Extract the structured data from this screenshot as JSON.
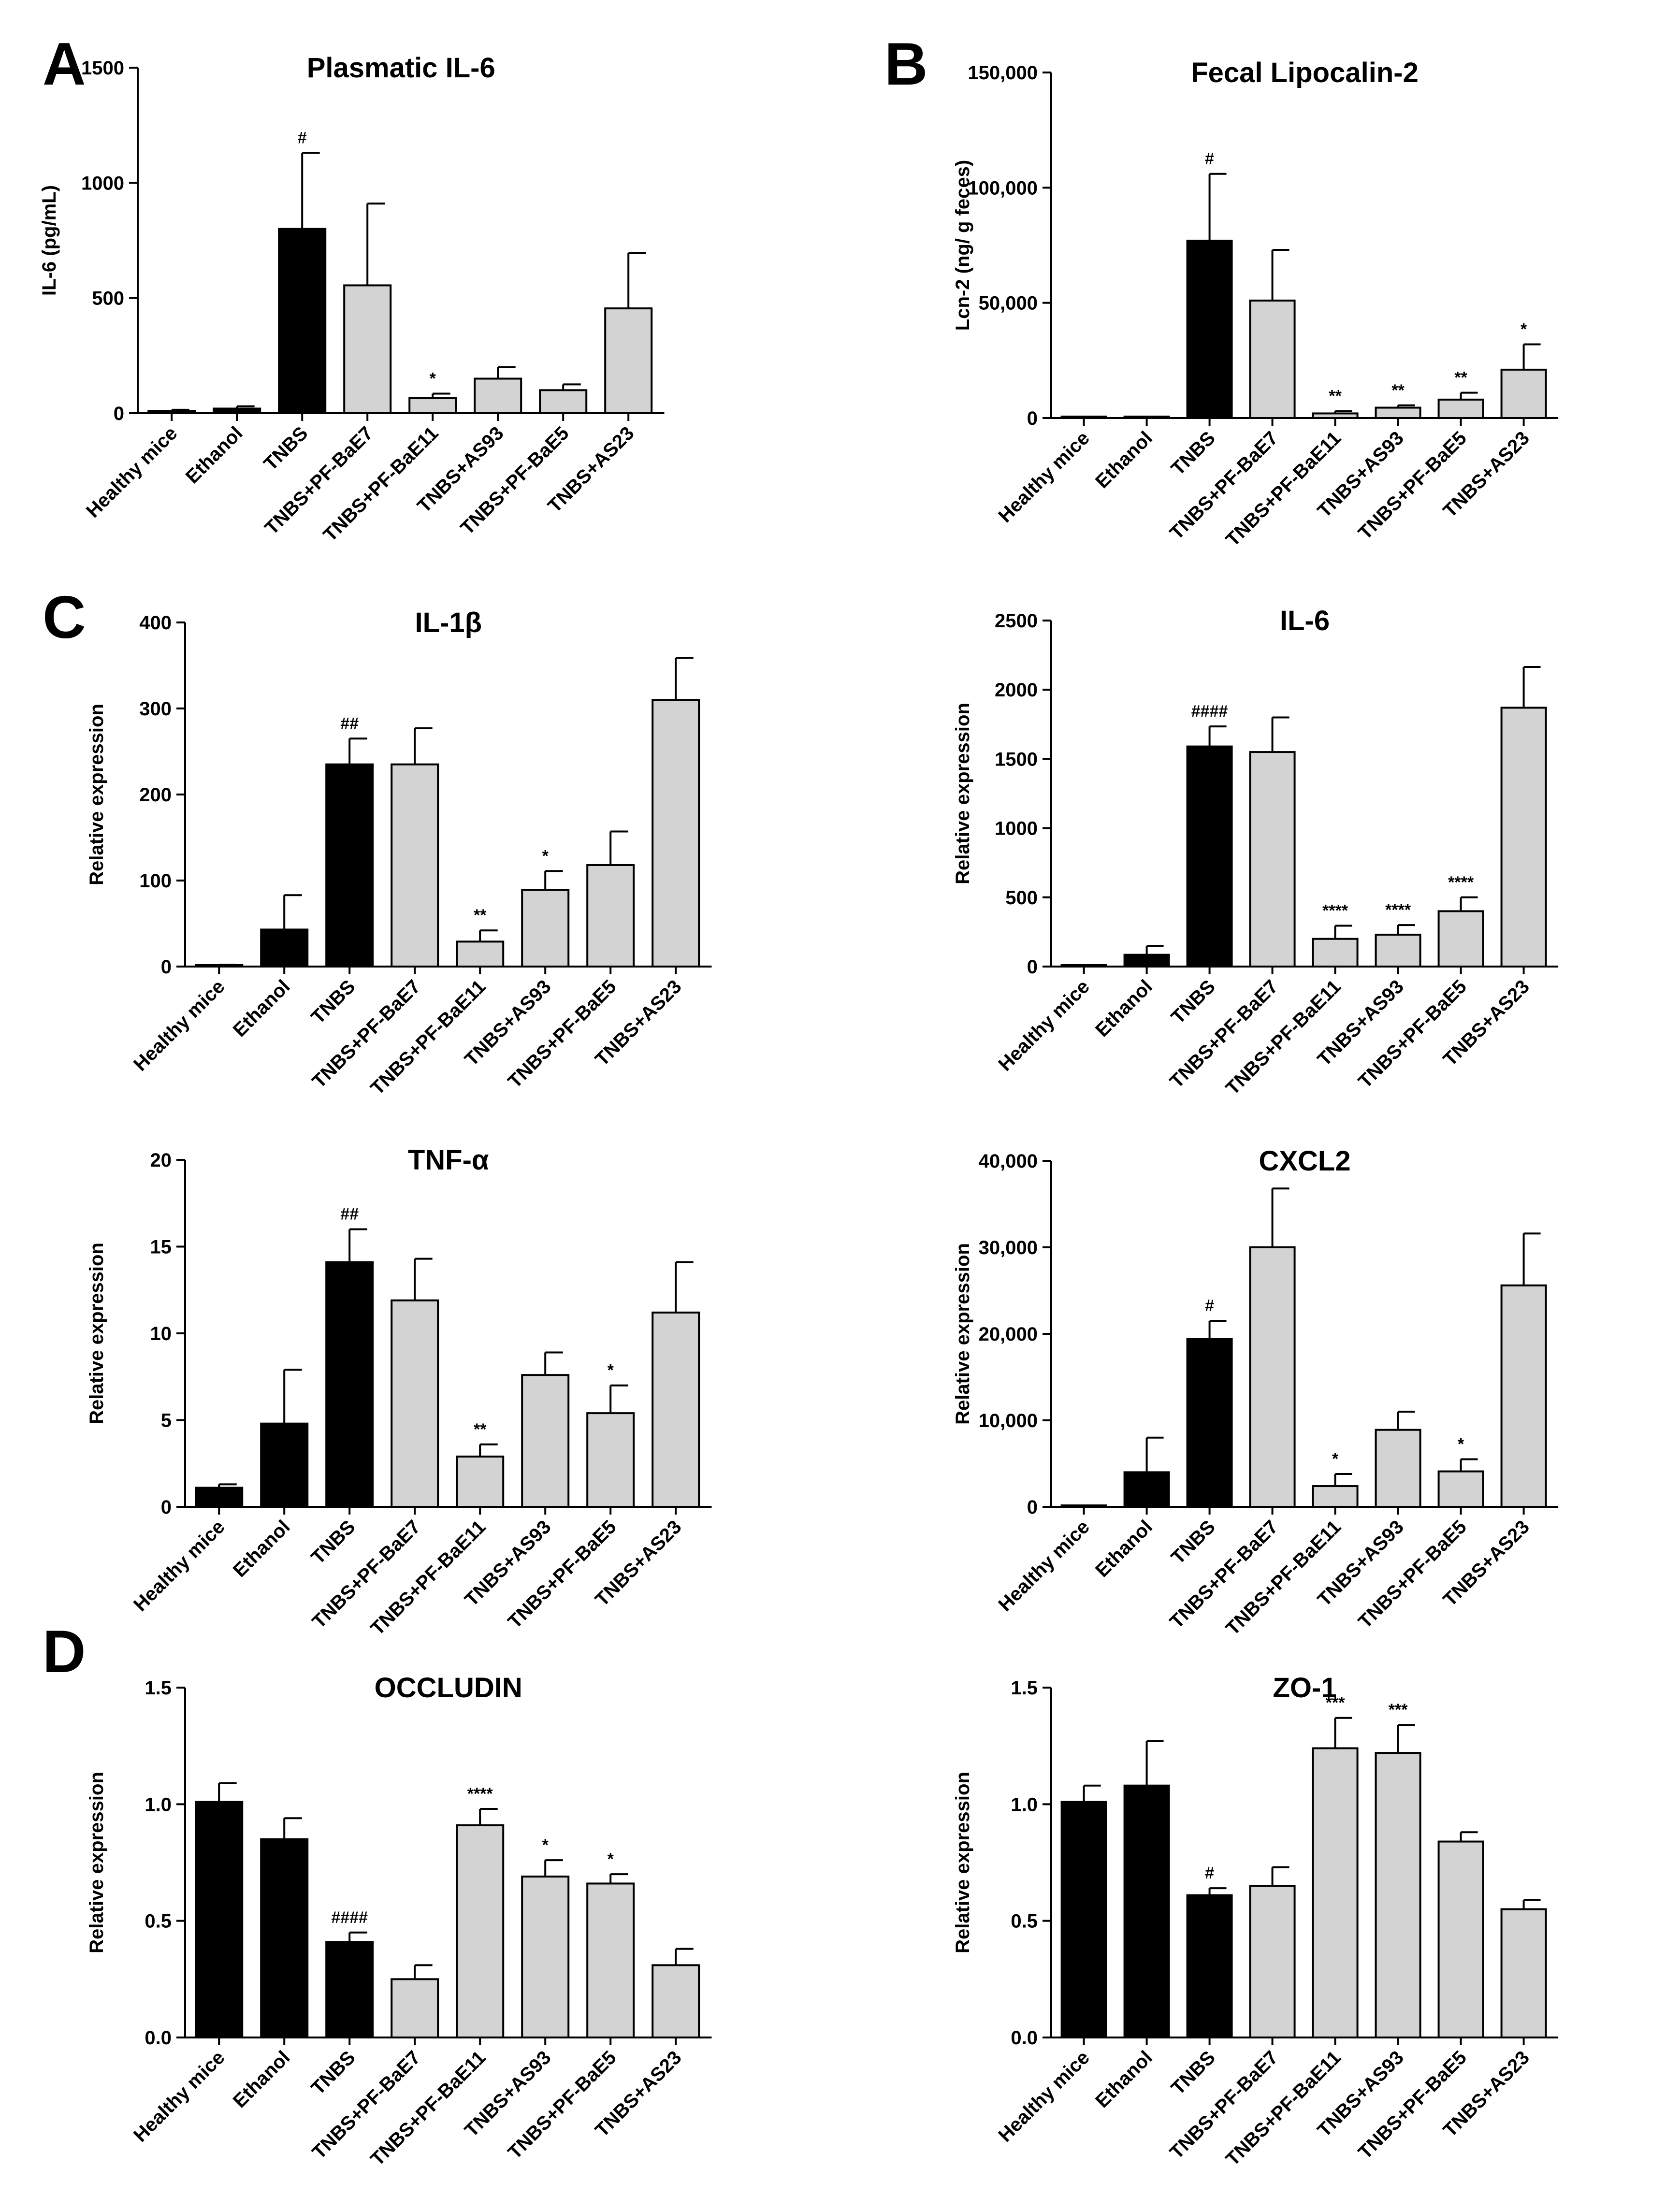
{
  "figure": {
    "panel_letters": [
      "A",
      "B",
      "C",
      "D"
    ]
  },
  "style": {
    "treated_color": "#d3d3d3",
    "control_color": "#000000"
  },
  "chart_data": [
    {
      "id": "il6-plasma",
      "type": "bar",
      "title": "Plasmatic IL-6",
      "ylabel": "IL-6 (pg/mL)",
      "ylim": [
        0,
        1500
      ],
      "yticks": [
        0,
        500,
        1000,
        1500
      ],
      "ytick_labels": [
        "0",
        "500",
        "1000",
        "1500"
      ],
      "categories": [
        "Healthy mice",
        "Ethanol",
        "TNBS",
        "TNBS+PF-BaE7",
        "TNBS+PF-BaE11",
        "TNBS+AS93",
        "TNBS+PF-BaE5",
        "TNBS+AS23"
      ],
      "values": [
        10,
        20,
        800,
        555,
        65,
        150,
        100,
        455
      ],
      "errors": [
        5,
        10,
        330,
        355,
        20,
        50,
        25,
        240
      ],
      "colors": [
        "black",
        "black",
        "black",
        "grey",
        "grey",
        "grey",
        "grey",
        "grey"
      ],
      "significance": [
        "",
        "",
        "#",
        "",
        "*",
        "",
        "",
        ""
      ]
    },
    {
      "id": "lcn2-fecal",
      "type": "bar",
      "title": "Fecal Lipocalin-2",
      "ylabel": "Lcn-2 (ng/ g feces)",
      "ylim": [
        0,
        150000
      ],
      "yticks": [
        0,
        50000,
        100000,
        150000
      ],
      "ytick_labels": [
        "0",
        "50,000",
        "100,000",
        "150,000"
      ],
      "categories": [
        "Healthy mice",
        "Ethanol",
        "TNBS",
        "TNBS+PF-BaE7",
        "TNBS+PF-BaE11",
        "TNBS+AS93",
        "TNBS+PF-BaE5",
        "TNBS+AS23"
      ],
      "values": [
        0,
        200,
        77000,
        51000,
        2000,
        4500,
        8000,
        21000
      ],
      "errors": [
        0,
        100,
        29000,
        22000,
        1000,
        1000,
        3000,
        11000
      ],
      "colors": [
        "black",
        "black",
        "black",
        "grey",
        "grey",
        "grey",
        "grey",
        "grey"
      ],
      "significance": [
        "",
        "",
        "#",
        "",
        "**",
        "**",
        "**",
        "*"
      ]
    },
    {
      "id": "il1b",
      "type": "bar",
      "title": "IL-1β",
      "ylabel": "Relative expression",
      "ylim": [
        0,
        400
      ],
      "yticks": [
        0,
        100,
        200,
        300,
        400
      ],
      "ytick_labels": [
        "0",
        "100",
        "200",
        "300",
        "400"
      ],
      "categories": [
        "Healthy mice",
        "Ethanol",
        "TNBS",
        "TNBS+PF-BaE7",
        "TNBS+PF-BaE11",
        "TNBS+AS93",
        "TNBS+PF-BaE5",
        "TNBS+AS23"
      ],
      "values": [
        1,
        43,
        235,
        235,
        29,
        89,
        118,
        310
      ],
      "errors": [
        1,
        40,
        30,
        42,
        13,
        22,
        39,
        49
      ],
      "colors": [
        "black",
        "black",
        "black",
        "grey",
        "grey",
        "grey",
        "grey",
        "grey"
      ],
      "significance": [
        "",
        "",
        "##",
        "",
        "**",
        "*",
        "",
        ""
      ]
    },
    {
      "id": "il6-tissue",
      "type": "bar",
      "title": "IL-6",
      "ylabel": "Relative expression",
      "ylim": [
        0,
        2500
      ],
      "yticks": [
        0,
        500,
        1000,
        1500,
        2000,
        2500
      ],
      "ytick_labels": [
        "0",
        "500",
        "1000",
        "1500",
        "2000",
        "2500"
      ],
      "categories": [
        "Healthy mice",
        "Ethanol",
        "TNBS",
        "TNBS+PF-BaE7",
        "TNBS+PF-BaE11",
        "TNBS+AS93",
        "TNBS+PF-BaE5",
        "TNBS+AS23"
      ],
      "values": [
        5,
        85,
        1590,
        1550,
        200,
        230,
        400,
        1870
      ],
      "errors": [
        3,
        65,
        145,
        250,
        95,
        70,
        100,
        295
      ],
      "colors": [
        "black",
        "black",
        "black",
        "grey",
        "grey",
        "grey",
        "grey",
        "grey"
      ],
      "significance": [
        "",
        "",
        "####",
        "",
        "****",
        "****",
        "****",
        ""
      ]
    },
    {
      "id": "tnfa",
      "type": "bar",
      "title": "TNF-α",
      "ylabel": "Relative expression",
      "ylim": [
        0,
        20
      ],
      "yticks": [
        0,
        5,
        10,
        15,
        20
      ],
      "ytick_labels": [
        "0",
        "5",
        "10",
        "15",
        "20"
      ],
      "categories": [
        "Healthy mice",
        "Ethanol",
        "TNBS",
        "TNBS+PF-BaE7",
        "TNBS+PF-BaE11",
        "TNBS+AS93",
        "TNBS+PF-BaE5",
        "TNBS+AS23"
      ],
      "values": [
        1.1,
        4.8,
        14.1,
        11.9,
        2.9,
        7.6,
        5.4,
        11.2
      ],
      "errors": [
        0.2,
        3.1,
        1.9,
        2.4,
        0.7,
        1.3,
        1.6,
        2.9
      ],
      "colors": [
        "black",
        "black",
        "black",
        "grey",
        "grey",
        "grey",
        "grey",
        "grey"
      ],
      "significance": [
        "",
        "",
        "##",
        "",
        "**",
        "",
        "*",
        ""
      ]
    },
    {
      "id": "cxcl2",
      "type": "bar",
      "title": "CXCL2",
      "ylabel": "Relative expression",
      "ylim": [
        0,
        40000
      ],
      "yticks": [
        0,
        10000,
        20000,
        30000,
        40000
      ],
      "ytick_labels": [
        "0",
        "10,000",
        "20,000",
        "30,000",
        "40,000"
      ],
      "categories": [
        "Healthy mice",
        "Ethanol",
        "TNBS",
        "TNBS+PF-BaE7",
        "TNBS+PF-BaE11",
        "TNBS+AS93",
        "TNBS+PF-BaE5",
        "TNBS+AS23"
      ],
      "values": [
        0,
        4000,
        19400,
        30000,
        2400,
        8900,
        4100,
        25600
      ],
      "errors": [
        0,
        4000,
        2100,
        6800,
        1400,
        2100,
        1400,
        6000
      ],
      "colors": [
        "black",
        "black",
        "black",
        "grey",
        "grey",
        "grey",
        "grey",
        "grey"
      ],
      "significance": [
        "",
        "",
        "#",
        "",
        "*",
        "",
        "*",
        ""
      ]
    },
    {
      "id": "occludin",
      "type": "bar",
      "title": "OCCLUDIN",
      "ylabel": "Relative expression",
      "ylim": [
        0,
        1.5
      ],
      "yticks": [
        0,
        0.5,
        1.0,
        1.5
      ],
      "ytick_labels": [
        "0.0",
        "0.5",
        "1.0",
        "1.5"
      ],
      "categories": [
        "Healthy mice",
        "Ethanol",
        "TNBS",
        "TNBS+PF-BaE7",
        "TNBS+PF-BaE11",
        "TNBS+AS93",
        "TNBS+PF-BaE5",
        "TNBS+AS23"
      ],
      "values": [
        1.01,
        0.85,
        0.41,
        0.25,
        0.91,
        0.69,
        0.66,
        0.31
      ],
      "errors": [
        0.08,
        0.09,
        0.04,
        0.06,
        0.07,
        0.07,
        0.04,
        0.07
      ],
      "colors": [
        "black",
        "black",
        "black",
        "grey",
        "grey",
        "grey",
        "grey",
        "grey"
      ],
      "significance": [
        "",
        "",
        "####",
        "",
        "****",
        "*",
        "*",
        ""
      ]
    },
    {
      "id": "zo1",
      "type": "bar",
      "title": "ZO-1",
      "ylabel": "Relative expression",
      "ylim": [
        0,
        1.5
      ],
      "yticks": [
        0,
        0.5,
        1.0,
        1.5
      ],
      "ytick_labels": [
        "0.0",
        "0.5",
        "1.0",
        "1.5"
      ],
      "categories": [
        "Healthy mice",
        "Ethanol",
        "TNBS",
        "TNBS+PF-BaE7",
        "TNBS+PF-BaE11",
        "TNBS+AS93",
        "TNBS+PF-BaE5",
        "TNBS+AS23"
      ],
      "values": [
        1.01,
        1.08,
        0.61,
        0.65,
        1.24,
        1.22,
        0.84,
        0.55
      ],
      "errors": [
        0.07,
        0.19,
        0.03,
        0.08,
        0.13,
        0.12,
        0.04,
        0.04
      ],
      "colors": [
        "black",
        "black",
        "black",
        "grey",
        "grey",
        "grey",
        "grey",
        "grey"
      ],
      "significance": [
        "",
        "",
        "#",
        "",
        "***",
        "***",
        "",
        ""
      ]
    }
  ]
}
